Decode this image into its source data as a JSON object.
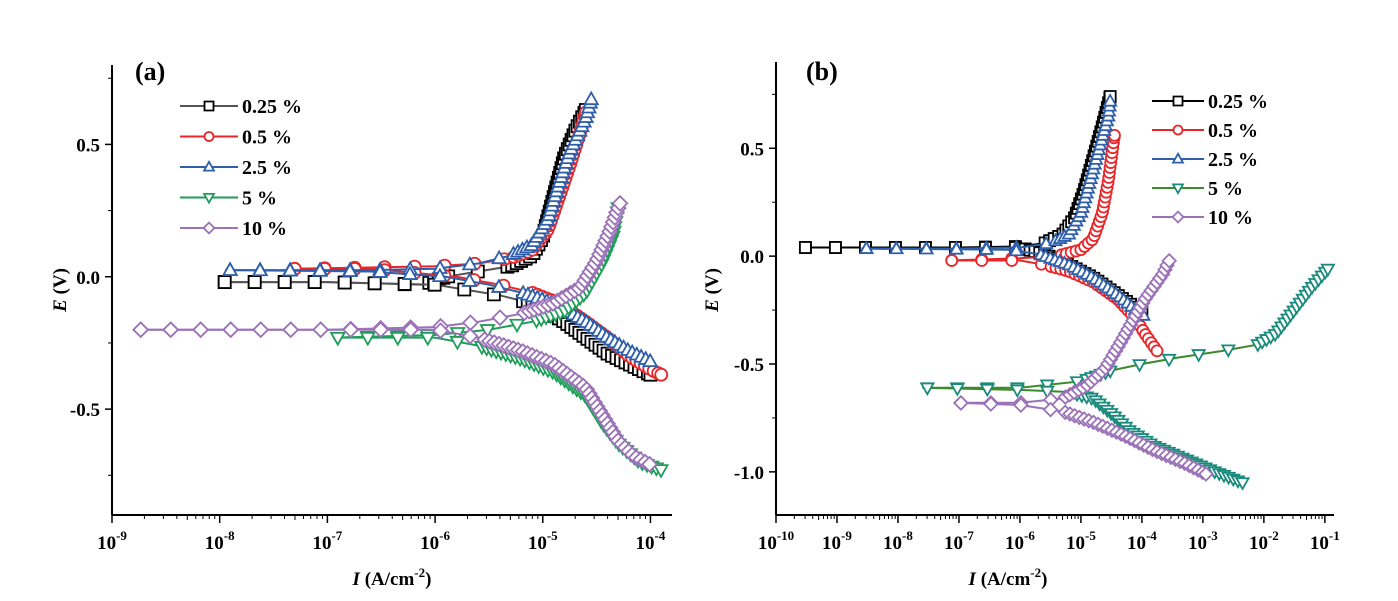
{
  "chart_data": [
    {
      "type": "line",
      "panel_label": "(a)",
      "xlabel_italic": "I",
      "xlabel_rest": " (A/cm",
      "xlabel_sup": "-2",
      "xlabel_close": ")",
      "ylabel_italic": "E",
      "ylabel_rest": " (V)",
      "xscale": "log",
      "xlim_log10": [
        -9,
        -3.8
      ],
      "ylim": [
        -0.9,
        0.8
      ],
      "x_ticks_log10": [
        -9,
        -8,
        -7,
        -6,
        -5,
        -4
      ],
      "x_tick_labels": [
        {
          "base": "10",
          "exp": "-9"
        },
        {
          "base": "10",
          "exp": "-8"
        },
        {
          "base": "10",
          "exp": "-7"
        },
        {
          "base": "10",
          "exp": "-6"
        },
        {
          "base": "10",
          "exp": "-5"
        },
        {
          "base": "10",
          "exp": "-4"
        }
      ],
      "y_ticks": [
        0.5,
        0.0,
        -0.5
      ],
      "y_tick_labels": [
        "0.5",
        "0.0",
        "-0.5"
      ],
      "y_minor_ticks": [
        0.75,
        0.25,
        -0.25,
        -0.75
      ],
      "legend_position": "top-left",
      "series": [
        {
          "name": "0.25 %",
          "color": "#000000",
          "line_color": "#555555",
          "marker": "square",
          "anodic": [
            [
              -8.0,
              -0.02
            ],
            [
              -7.0,
              -0.02
            ],
            [
              -6.1,
              -0.03
            ],
            [
              -5.9,
              0.0
            ],
            [
              -5.6,
              0.02
            ],
            [
              -5.3,
              0.04
            ],
            [
              -5.1,
              0.08
            ],
            [
              -5.0,
              0.15
            ],
            [
              -4.9,
              0.3
            ],
            [
              -4.8,
              0.45
            ],
            [
              -4.7,
              0.55
            ],
            [
              -4.6,
              0.63
            ]
          ],
          "cathodic": [
            [
              -8.0,
              -0.02
            ],
            [
              -7.0,
              -0.02
            ],
            [
              -6.0,
              -0.03
            ],
            [
              -5.7,
              -0.05
            ],
            [
              -5.4,
              -0.07
            ],
            [
              -5.2,
              -0.09
            ],
            [
              -5.0,
              -0.12
            ],
            [
              -4.8,
              -0.17
            ],
            [
              -4.6,
              -0.23
            ],
            [
              -4.4,
              -0.29
            ],
            [
              -4.2,
              -0.33
            ],
            [
              -4.0,
              -0.37
            ]
          ]
        },
        {
          "name": "0.5 %",
          "color": "#e8262a",
          "line_color": "#e8262a",
          "marker": "circle",
          "anodic": [
            [
              -7.35,
              0.03
            ],
            [
              -6.6,
              0.035
            ],
            [
              -6.0,
              0.04
            ],
            [
              -5.6,
              0.05
            ],
            [
              -5.3,
              0.07
            ],
            [
              -5.1,
              0.1
            ],
            [
              -4.95,
              0.18
            ],
            [
              -4.85,
              0.3
            ],
            [
              -4.75,
              0.42
            ],
            [
              -4.65,
              0.55
            ],
            [
              -4.6,
              0.62
            ]
          ],
          "cathodic": [
            [
              -7.35,
              0.03
            ],
            [
              -6.6,
              0.03
            ],
            [
              -5.8,
              0.0
            ],
            [
              -5.4,
              -0.03
            ],
            [
              -5.1,
              -0.06
            ],
            [
              -4.85,
              -0.1
            ],
            [
              -4.6,
              -0.17
            ],
            [
              -4.4,
              -0.23
            ],
            [
              -4.2,
              -0.3
            ],
            [
              -4.0,
              -0.35
            ],
            [
              -3.9,
              -0.37
            ]
          ]
        },
        {
          "name": "2.5 %",
          "color": "#2e5fab",
          "line_color": "#2e5fab",
          "marker": "triangle-up",
          "anodic": [
            [
              -7.95,
              0.025
            ],
            [
              -6.6,
              0.025
            ],
            [
              -6.0,
              0.03
            ],
            [
              -5.6,
              0.05
            ],
            [
              -5.3,
              0.08
            ],
            [
              -5.1,
              0.12
            ],
            [
              -4.95,
              0.22
            ],
            [
              -4.85,
              0.35
            ],
            [
              -4.75,
              0.47
            ],
            [
              -4.6,
              0.6
            ],
            [
              -4.55,
              0.67
            ]
          ],
          "cathodic": [
            [
              -7.95,
              0.025
            ],
            [
              -6.6,
              0.02
            ],
            [
              -5.9,
              0.0
            ],
            [
              -5.5,
              -0.03
            ],
            [
              -5.2,
              -0.06
            ],
            [
              -4.9,
              -0.1
            ],
            [
              -4.6,
              -0.17
            ],
            [
              -4.4,
              -0.23
            ],
            [
              -4.2,
              -0.28
            ],
            [
              -4.0,
              -0.32
            ]
          ]
        },
        {
          "name": "5 %",
          "color": "#1f9e5a",
          "line_color": "#1f9e5a",
          "marker": "triangle-down",
          "anodic": [
            [
              -6.95,
              -0.23
            ],
            [
              -6.0,
              -0.22
            ],
            [
              -5.5,
              -0.2
            ],
            [
              -5.1,
              -0.17
            ],
            [
              -4.8,
              -0.13
            ],
            [
              -4.6,
              -0.06
            ],
            [
              -4.45,
              0.05
            ],
            [
              -4.35,
              0.15
            ],
            [
              -4.3,
              0.26
            ]
          ],
          "cathodic": [
            [
              -6.95,
              -0.23
            ],
            [
              -6.0,
              -0.23
            ],
            [
              -5.6,
              -0.26
            ],
            [
              -5.2,
              -0.31
            ],
            [
              -4.9,
              -0.36
            ],
            [
              -4.6,
              -0.45
            ],
            [
              -4.45,
              -0.55
            ],
            [
              -4.3,
              -0.63
            ],
            [
              -4.1,
              -0.7
            ],
            [
              -3.9,
              -0.73
            ]
          ]
        },
        {
          "name": "10 %",
          "color": "#9b72b8",
          "line_color": "#9b72b8",
          "marker": "diamond",
          "anodic": [
            [
              -8.78,
              -0.2
            ],
            [
              -7.0,
              -0.2
            ],
            [
              -6.0,
              -0.19
            ],
            [
              -5.6,
              -0.17
            ],
            [
              -5.2,
              -0.14
            ],
            [
              -4.9,
              -0.1
            ],
            [
              -4.65,
              -0.04
            ],
            [
              -4.5,
              0.06
            ],
            [
              -4.38,
              0.17
            ],
            [
              -4.28,
              0.28
            ]
          ],
          "cathodic": [
            [
              -8.78,
              -0.2
            ],
            [
              -6.0,
              -0.2
            ],
            [
              -5.6,
              -0.23
            ],
            [
              -5.2,
              -0.28
            ],
            [
              -4.9,
              -0.33
            ],
            [
              -4.6,
              -0.42
            ],
            [
              -4.45,
              -0.52
            ],
            [
              -4.3,
              -0.62
            ],
            [
              -4.15,
              -0.68
            ],
            [
              -4.0,
              -0.71
            ]
          ]
        }
      ]
    },
    {
      "type": "line",
      "panel_label": "(b)",
      "xlabel_italic": "I",
      "xlabel_rest": " (A/cm",
      "xlabel_sup": "-2",
      "xlabel_close": ")",
      "ylabel_italic": "E",
      "ylabel_rest": " (V)",
      "xscale": "log",
      "xlim_log10": [
        -10,
        -0.85
      ],
      "ylim": [
        -1.2,
        0.9
      ],
      "x_ticks_log10": [
        -10,
        -9,
        -8,
        -7,
        -6,
        -5,
        -4,
        -3,
        -2,
        -1
      ],
      "x_tick_labels": [
        {
          "base": "10",
          "exp": "-10"
        },
        {
          "base": "10",
          "exp": "-9"
        },
        {
          "base": "10",
          "exp": "-8"
        },
        {
          "base": "10",
          "exp": "-7"
        },
        {
          "base": "10",
          "exp": "-6"
        },
        {
          "base": "10",
          "exp": "-5"
        },
        {
          "base": "10",
          "exp": "-4"
        },
        {
          "base": "10",
          "exp": "-3"
        },
        {
          "base": "10",
          "exp": "-2"
        },
        {
          "base": "10",
          "exp": "-1"
        }
      ],
      "y_ticks": [
        0.5,
        0.0,
        -0.5,
        -1.0
      ],
      "y_tick_labels": [
        "0.5",
        "0.0",
        "-0.5",
        "-1.0"
      ],
      "y_minor_ticks": [
        0.75,
        0.25,
        -0.25,
        -0.75
      ],
      "legend_position": "top-right",
      "series": [
        {
          "name": "0.25 %",
          "color": "#000000",
          "line_color": "#000000",
          "marker": "square",
          "anodic": [
            [
              -9.6,
              0.04
            ],
            [
              -7.0,
              0.04
            ],
            [
              -6.0,
              0.045
            ],
            [
              -5.6,
              0.06
            ],
            [
              -5.3,
              0.1
            ],
            [
              -5.1,
              0.18
            ],
            [
              -4.95,
              0.3
            ],
            [
              -4.8,
              0.45
            ],
            [
              -4.65,
              0.6
            ],
            [
              -4.52,
              0.74
            ]
          ],
          "cathodic": [
            [
              -9.6,
              0.04
            ],
            [
              -6.0,
              0.04
            ],
            [
              -5.6,
              0.01
            ],
            [
              -5.2,
              -0.04
            ],
            [
              -4.8,
              -0.1
            ],
            [
              -4.5,
              -0.16
            ],
            [
              -4.2,
              -0.22
            ],
            [
              -4.0,
              -0.26
            ]
          ]
        },
        {
          "name": "0.5 %",
          "color": "#e8262a",
          "line_color": "#e8262a",
          "marker": "circle",
          "anodic": [
            [
              -7.2,
              -0.02
            ],
            [
              -6.0,
              -0.01
            ],
            [
              -5.4,
              0.0
            ],
            [
              -5.0,
              0.03
            ],
            [
              -4.8,
              0.08
            ],
            [
              -4.65,
              0.2
            ],
            [
              -4.55,
              0.35
            ],
            [
              -4.48,
              0.5
            ],
            [
              -4.45,
              0.56
            ]
          ],
          "cathodic": [
            [
              -7.2,
              -0.02
            ],
            [
              -6.0,
              -0.02
            ],
            [
              -5.6,
              -0.04
            ],
            [
              -5.2,
              -0.07
            ],
            [
              -4.8,
              -0.12
            ],
            [
              -4.4,
              -0.2
            ],
            [
              -4.1,
              -0.29
            ],
            [
              -3.95,
              -0.36
            ],
            [
              -3.8,
              -0.42
            ],
            [
              -3.75,
              -0.44
            ]
          ]
        },
        {
          "name": "2.5 %",
          "color": "#2e5fab",
          "line_color": "#2e5fab",
          "marker": "triangle-up",
          "anodic": [
            [
              -8.6,
              0.035
            ],
            [
              -7.0,
              0.035
            ],
            [
              -6.0,
              0.04
            ],
            [
              -5.5,
              0.06
            ],
            [
              -5.2,
              0.1
            ],
            [
              -5.0,
              0.2
            ],
            [
              -4.85,
              0.35
            ],
            [
              -4.7,
              0.5
            ],
            [
              -4.55,
              0.65
            ],
            [
              -4.52,
              0.72
            ]
          ],
          "cathodic": [
            [
              -8.6,
              0.035
            ],
            [
              -6.2,
              0.03
            ],
            [
              -5.7,
              0.01
            ],
            [
              -5.2,
              -0.04
            ],
            [
              -4.8,
              -0.1
            ],
            [
              -4.4,
              -0.18
            ],
            [
              -4.1,
              -0.25
            ],
            [
              -3.95,
              -0.28
            ]
          ]
        },
        {
          "name": "5 %",
          "color": "#1a8a7c",
          "line_color": "#3d8a2a",
          "marker": "triangle-down",
          "anodic": [
            [
              -7.6,
              -0.61
            ],
            [
              -6.0,
              -0.61
            ],
            [
              -5.0,
              -0.58
            ],
            [
              -4.5,
              -0.53
            ],
            [
              -4.0,
              -0.5
            ],
            [
              -3.4,
              -0.47
            ],
            [
              -2.7,
              -0.44
            ],
            [
              -2.1,
              -0.41
            ],
            [
              -1.8,
              -0.36
            ],
            [
              -1.5,
              -0.25
            ],
            [
              -1.2,
              -0.14
            ],
            [
              -0.95,
              -0.06
            ]
          ],
          "cathodic": [
            [
              -7.6,
              -0.61
            ],
            [
              -6.0,
              -0.62
            ],
            [
              -5.2,
              -0.63
            ],
            [
              -4.8,
              -0.66
            ],
            [
              -4.5,
              -0.73
            ],
            [
              -4.2,
              -0.81
            ],
            [
              -3.8,
              -0.88
            ],
            [
              -3.3,
              -0.94
            ],
            [
              -2.8,
              -1.0
            ],
            [
              -2.35,
              -1.05
            ]
          ]
        },
        {
          "name": "10 %",
          "color": "#9b72b8",
          "line_color": "#9b72b8",
          "marker": "diamond",
          "anodic": [
            [
              -7.05,
              -0.68
            ],
            [
              -6.0,
              -0.68
            ],
            [
              -5.3,
              -0.66
            ],
            [
              -4.9,
              -0.6
            ],
            [
              -4.6,
              -0.52
            ],
            [
              -4.35,
              -0.4
            ],
            [
              -4.15,
              -0.3
            ],
            [
              -3.95,
              -0.2
            ],
            [
              -3.75,
              -0.12
            ],
            [
              -3.65,
              -0.08
            ],
            [
              -3.55,
              -0.02
            ]
          ],
          "cathodic": [
            [
              -7.05,
              -0.68
            ],
            [
              -6.0,
              -0.69
            ],
            [
              -5.3,
              -0.72
            ],
            [
              -4.8,
              -0.77
            ],
            [
              -4.3,
              -0.83
            ],
            [
              -3.8,
              -0.9
            ],
            [
              -3.3,
              -0.96
            ],
            [
              -2.95,
              -1.01
            ]
          ]
        }
      ]
    }
  ]
}
